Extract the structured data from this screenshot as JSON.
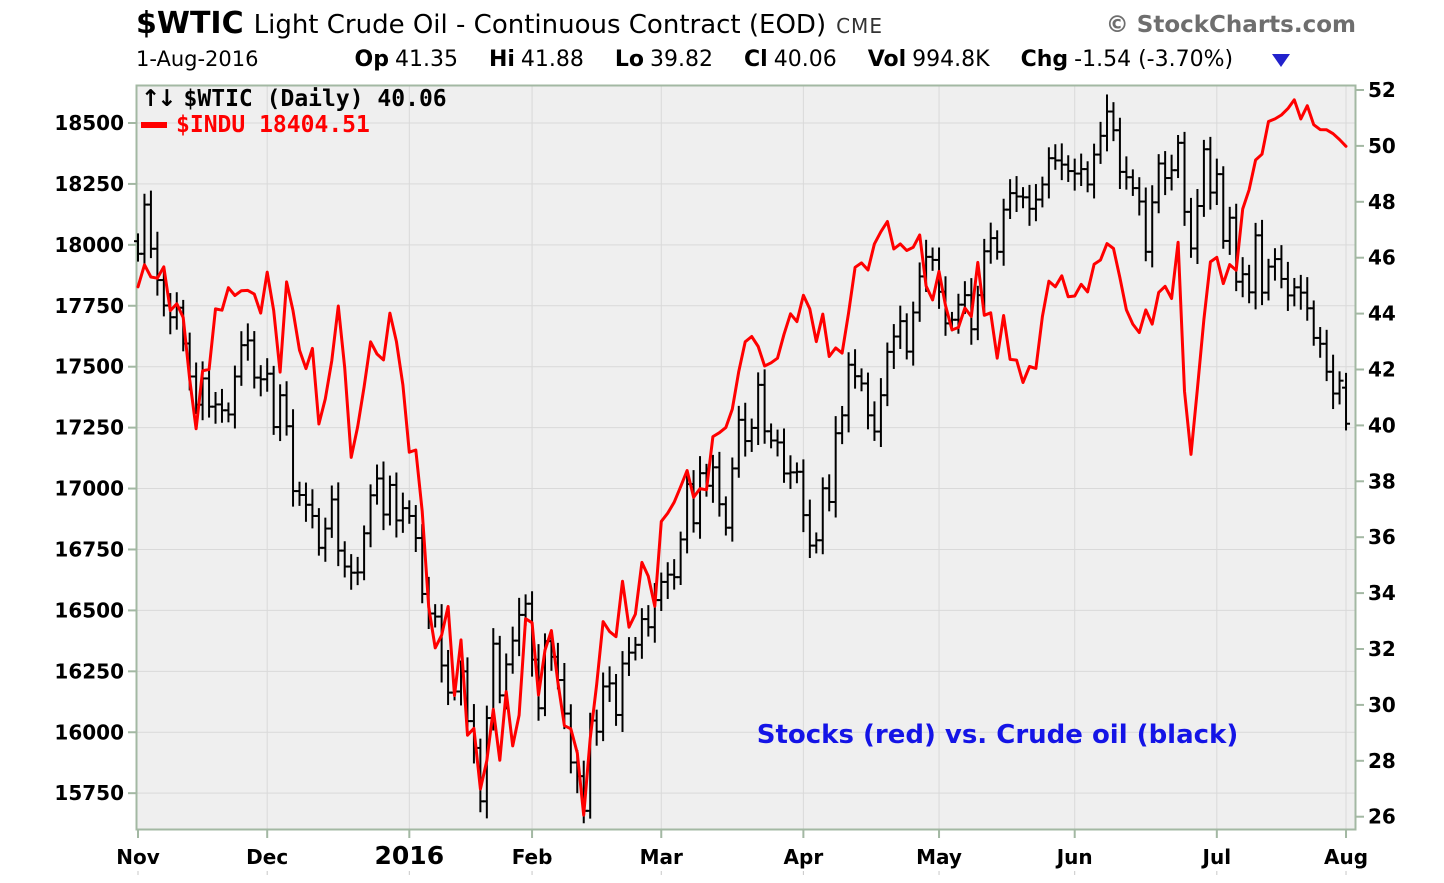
{
  "header": {
    "symbol": "$WTIC",
    "title": "Light Crude Oil - Continuous Contract (EOD)",
    "exchange": "CME",
    "credit": "© StockCharts.com",
    "date": "1-Aug-2016",
    "quote": {
      "op_label": "Op",
      "op": "41.35",
      "hi_label": "Hi",
      "hi": "41.88",
      "lo_label": "Lo",
      "lo": "39.82",
      "cl_label": "Cl",
      "cl": "40.06",
      "vol_label": "Vol",
      "vol": "994.8K",
      "chg_label": "Chg",
      "chg": "-1.54 (-3.70%)",
      "chg_direction": "down"
    }
  },
  "legend": {
    "arrows_icon": "↑↓",
    "line1": "$WTIC (Daily) 40.06",
    "line2": "$INDU 18404.51"
  },
  "annotation": {
    "text": "Stocks (red) vs. Crude oil (black)",
    "color": "#1414e6"
  },
  "colors": {
    "wtic": "#000000",
    "indu": "#ff0000",
    "plot_bg": "#efefef",
    "grid": "#d9d9d9",
    "frame": "#a3b8a3",
    "triangle": "#2222cc"
  },
  "chart_data": {
    "type": "ohlc+line",
    "title": "$WTIC (Daily) with $INDU overlay",
    "start_date": "2015-11-02",
    "end_date": "2016-08-01",
    "n_bars": 188,
    "grid": true,
    "x_ticks": [
      {
        "label": "Nov",
        "index": 0
      },
      {
        "label": "Dec",
        "index": 20
      },
      {
        "label": "2016",
        "index": 42,
        "year": true
      },
      {
        "label": "Feb",
        "index": 61
      },
      {
        "label": "Mar",
        "index": 81
      },
      {
        "label": "Apr",
        "index": 103
      },
      {
        "label": "May",
        "index": 124
      },
      {
        "label": "Jun",
        "index": 145
      },
      {
        "label": "Jul",
        "index": 167
      },
      {
        "label": "Aug",
        "index": 187
      }
    ],
    "left_axis": {
      "series": "$INDU",
      "range": [
        15590,
        18660
      ],
      "ticks": [
        18500,
        18250,
        18000,
        17750,
        17500,
        17250,
        17000,
        16750,
        16500,
        16250,
        16000,
        15750
      ]
    },
    "right_axis": {
      "series": "$WTIC",
      "range": [
        25.5,
        52.2
      ],
      "ticks": [
        52,
        50,
        48,
        46,
        44,
        42,
        40,
        38,
        36,
        34,
        32,
        30,
        28,
        26
      ]
    },
    "series": [
      {
        "name": "$WTIC",
        "type": "ohlc",
        "axis": "right",
        "color": "#000000",
        "last_bar": {
          "open": 41.35,
          "high": 41.88,
          "low": 39.82,
          "close": 40.06
        },
        "closes": [
          46.14,
          47.9,
          46.32,
          45.2,
          44.29,
          43.87,
          44.21,
          42.93,
          41.75,
          40.74,
          41.68,
          40.67,
          40.75,
          40.54,
          40.39,
          41.75,
          42.87,
          43.04,
          41.71,
          41.65,
          41.85,
          39.94,
          41.08,
          39.97,
          37.65,
          37.51,
          37.16,
          36.76,
          35.62,
          36.31,
          37.35,
          35.52,
          34.95,
          34.73,
          34.74,
          36.14,
          37.5,
          38.1,
          36.81,
          37.87,
          36.6,
          37.04,
          36.76,
          35.97,
          33.97,
          33.27,
          33.16,
          31.41,
          30.44,
          30.48,
          31.2,
          29.42,
          28.46,
          26.55,
          29.53,
          32.19,
          30.34,
          31.45,
          32.3,
          33.22,
          33.62,
          31.62,
          29.88,
          32.28,
          31.72,
          30.89,
          29.69,
          27.94,
          27.45,
          26.21,
          29.44,
          29.04,
          30.66,
          30.77,
          29.64,
          31.48,
          31.87,
          32.15,
          33.07,
          32.78,
          33.75,
          34.4,
          34.66,
          34.57,
          35.92,
          37.9,
          36.5,
          38.29,
          37.84,
          38.5,
          37.18,
          36.34,
          38.46,
          40.2,
          39.44,
          39.91,
          41.45,
          39.79,
          39.46,
          39.39,
          38.28,
          38.32,
          38.34,
          36.79,
          35.7,
          35.89,
          37.75,
          37.26,
          39.72,
          40.36,
          42.17,
          41.76,
          41.5,
          40.36,
          39.78,
          41.08,
          42.63,
          43.18,
          43.73,
          42.64,
          44.04,
          45.33,
          46.03,
          45.92,
          44.78,
          43.65,
          43.78,
          44.32,
          44.66,
          43.44,
          44.66,
          46.23,
          46.7,
          46.21,
          47.72,
          48.31,
          48.19,
          48.16,
          47.75,
          48.08,
          48.62,
          49.56,
          49.48,
          49.33,
          49.1,
          49.01,
          49.17,
          48.62,
          49.69,
          50.36,
          51.23,
          50.56,
          49.07,
          48.88,
          48.49,
          48.01,
          46.21,
          47.98,
          49.37,
          48.85,
          49.13,
          50.11,
          47.64,
          46.33,
          47.85,
          49.88,
          48.33,
          48.99,
          46.6,
          47.43,
          45.14,
          45.41,
          44.76,
          46.8,
          44.75,
          45.68,
          45.95,
          45.24,
          44.65,
          44.94,
          44.75,
          44.19,
          43.13,
          42.92,
          41.92,
          41.14,
          41.6,
          40.06
        ]
      },
      {
        "name": "$INDU",
        "type": "line",
        "axis": "left",
        "color": "#ff0000",
        "values": [
          17828,
          17918,
          17868,
          17863,
          17910,
          17730,
          17758,
          17702,
          17448,
          17245,
          17483,
          17489,
          17737,
          17732,
          17824,
          17792,
          17812,
          17813,
          17798,
          17720,
          17888,
          17730,
          17478,
          17848,
          17730,
          17568,
          17492,
          17575,
          17265,
          17368,
          17525,
          17749,
          17496,
          17128,
          17252,
          17417,
          17602,
          17552,
          17528,
          17720,
          17604,
          17425,
          17149,
          17158,
          16907,
          16514,
          16346,
          16398,
          16516,
          16151,
          16379,
          15988,
          16016,
          15767,
          15883,
          16094,
          15885,
          16167,
          15944,
          16070,
          16466,
          16449,
          16153,
          16337,
          16417,
          16205,
          16027,
          16014,
          15915,
          15660,
          15974,
          16197,
          16454,
          16413,
          16392,
          16620,
          16431,
          16485,
          16697,
          16640,
          16517,
          16865,
          16899,
          16944,
          17007,
          17074,
          16964,
          17000,
          16995,
          17213,
          17229,
          17251,
          17326,
          17481,
          17602,
          17624,
          17583,
          17503,
          17516,
          17535,
          17633,
          17717,
          17685,
          17793,
          17737,
          17603,
          17716,
          17542,
          17577,
          17556,
          17721,
          17908,
          17926,
          17897,
          18004,
          18054,
          18096,
          17983,
          18004,
          17977,
          17990,
          18041,
          17831,
          17774,
          17891,
          17751,
          17651,
          17661,
          17741,
          17706,
          17928,
          17711,
          17721,
          17535,
          17710,
          17530,
          17527,
          17435,
          17501,
          17493,
          17706,
          17851,
          17828,
          17873,
          17787,
          17790,
          17838,
          17807,
          17920,
          17938,
          18005,
          17985,
          17865,
          17733,
          17675,
          17640,
          17733,
          17675,
          17805,
          17830,
          17780,
          18011,
          17400,
          17140,
          17409,
          17694,
          17930,
          17949,
          17841,
          17919,
          17896,
          18147,
          18226,
          18348,
          18372,
          18506,
          18517,
          18533,
          18559,
          18595,
          18517,
          18571,
          18493,
          18473,
          18472,
          18456,
          18432,
          18404.51
        ]
      }
    ],
    "annotation": "Stocks (red) vs. Crude oil (black)"
  }
}
